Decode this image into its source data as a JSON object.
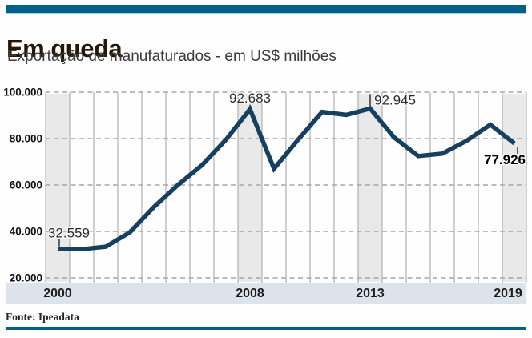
{
  "header": {
    "title": "Em queda",
    "subtitle": "Exportação de manufaturados - em US$ milhões"
  },
  "footer": {
    "source": "Fonte: Ipeadata"
  },
  "colors": {
    "accent_bar": "#02618a",
    "accent_bar_light": "#a9cdda",
    "title_text": "#221708",
    "subtitle_text": "#3c3c3c",
    "source_text": "#262626",
    "line": "#16405e",
    "highlight_band": "#e9e9e9",
    "axis_band": "#dce3ea",
    "grid_vertical": "#b2b0b0",
    "grid_dashed": "#a6a6a6",
    "tick_label": "#111111",
    "year_label": "#1d1d1d",
    "annotation_text": "#2b2b2b",
    "annotation_bold_text": "#000000"
  },
  "chart_data": {
    "type": "line",
    "title": "Em queda",
    "subtitle": "Exportação de manufaturados - em US$ milhões",
    "source": "Fonte: Ipeadata",
    "unit": "US$ milhões",
    "x": [
      2000,
      2001,
      2002,
      2003,
      2004,
      2005,
      2006,
      2007,
      2008,
      2009,
      2010,
      2011,
      2012,
      2013,
      2014,
      2015,
      2016,
      2017,
      2018,
      2019
    ],
    "values": [
      32559,
      32300,
      33400,
      39600,
      50500,
      60000,
      68500,
      79500,
      92683,
      67000,
      79500,
      91500,
      90200,
      92945,
      80500,
      72500,
      73500,
      79000,
      86000,
      77926
    ],
    "ylim": [
      20000,
      100000
    ],
    "ytick_labels": [
      "100.000",
      "80.000",
      "60.000",
      "40.000",
      "20.000"
    ],
    "x_axis_labels": [
      2000,
      2008,
      2013,
      2019
    ],
    "highlighted_years": [
      2000,
      2008,
      2013,
      2019
    ],
    "grid": {
      "vertical_solid": true,
      "horizontal_dashed": true
    },
    "legend": "none",
    "annotations": [
      {
        "year": 2000,
        "label": "32.559",
        "bold": false,
        "placement": "left"
      },
      {
        "year": 2008,
        "label": "92.683",
        "bold": false,
        "placement": "above"
      },
      {
        "year": 2013,
        "label": "92.945",
        "bold": false,
        "placement": "right-of-tick"
      },
      {
        "year": 2019,
        "label": "77.926",
        "bold": true,
        "placement": "below"
      }
    ]
  }
}
